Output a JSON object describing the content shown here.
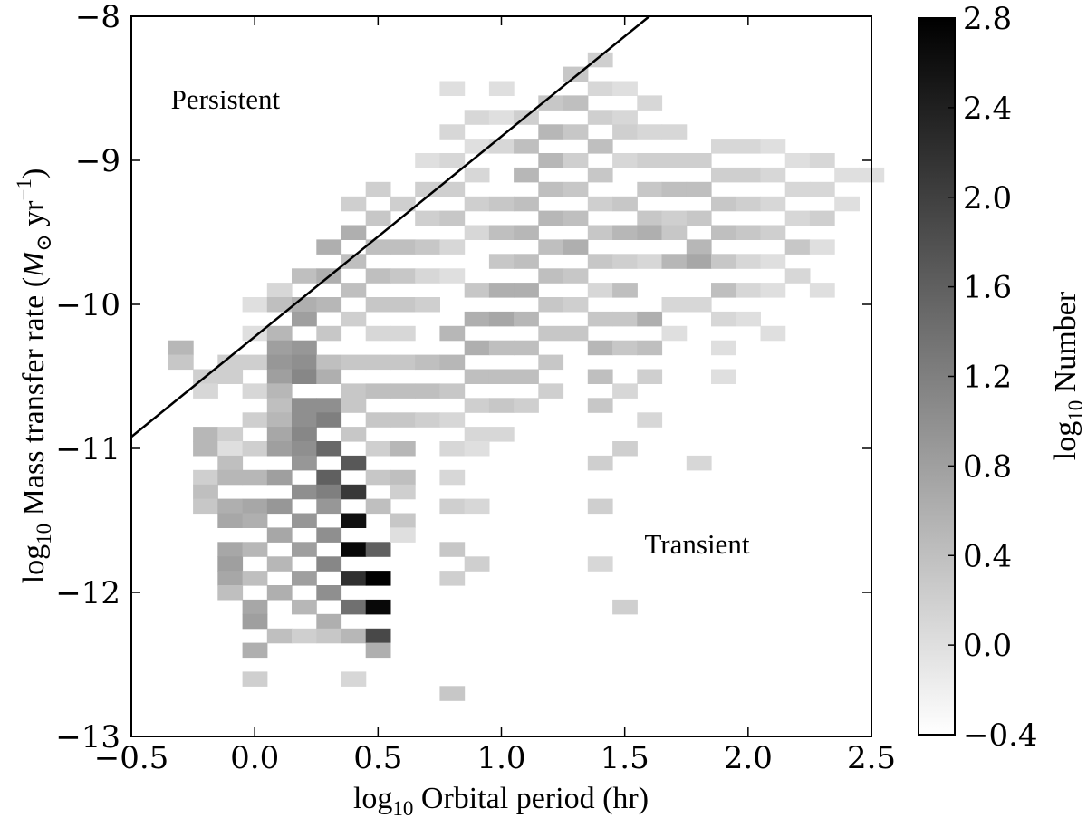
{
  "chart_data": {
    "type": "heatmap",
    "x_axis": {
      "label": "log10 Orbital period (hr)",
      "label_main": "log",
      "label_sub": "10",
      "label_rest": " Orbital period (hr)",
      "lim": [
        -0.5,
        2.5
      ],
      "ticks": [
        -0.5,
        0.0,
        0.5,
        1.0,
        1.5,
        2.0,
        2.5
      ],
      "tick_labels": [
        "−0.5",
        "0.0",
        "0.5",
        "1.0",
        "1.5",
        "2.0",
        "2.5"
      ]
    },
    "y_axis": {
      "label": "log10 Mass transfer rate (M⊙ yr−1)",
      "label_main": "log",
      "label_sub": "10",
      "label_rest": " Mass transfer rate (",
      "label_m": "M",
      "label_msub": "⊙",
      "label_yr": " yr",
      "label_sup": "−1",
      "label_close": ")",
      "lim": [
        -13,
        -8
      ],
      "ticks": [
        -13,
        -12,
        -11,
        -10,
        -9,
        -8
      ],
      "tick_labels": [
        "−13",
        "−12",
        "−11",
        "−10",
        "−9",
        "−8"
      ]
    },
    "colorbar": {
      "label": "log10 Number",
      "label_main": "log",
      "label_sub": "10",
      "label_rest": " Number",
      "lim": [
        -0.4,
        2.8
      ],
      "ticks": [
        -0.4,
        0.0,
        0.4,
        0.8,
        1.2,
        1.6,
        2.0,
        2.4,
        2.8
      ],
      "tick_labels": [
        "−0.4",
        "0.0",
        "0.4",
        "0.8",
        "1.2",
        "1.6",
        "2.0",
        "2.4",
        "2.8"
      ],
      "colormap": "gray_r"
    },
    "annotations": [
      {
        "text": "Persistent",
        "x": -0.34,
        "y": -8.64
      },
      {
        "text": "Transient",
        "x": 1.58,
        "y": -11.73
      }
    ],
    "boundary_line": {
      "x": [
        -0.5,
        1.6
      ],
      "y": [
        -10.92,
        -8.0
      ]
    },
    "bin_width_x": 0.1,
    "bin_width_y": 0.1,
    "cells": [
      [
        -0.3,
        -10.3,
        0.5
      ],
      [
        -0.3,
        -10.4,
        0.3
      ],
      [
        -0.2,
        -10.5,
        0.2
      ],
      [
        -0.2,
        -10.6,
        0.1
      ],
      [
        -0.2,
        -10.9,
        0.5
      ],
      [
        -0.2,
        -11.0,
        0.5
      ],
      [
        -0.2,
        -11.2,
        0.2
      ],
      [
        -0.2,
        -11.3,
        0.4
      ],
      [
        -0.2,
        -11.4,
        0.3
      ],
      [
        -0.1,
        -10.4,
        0.2
      ],
      [
        -0.1,
        -10.5,
        0.2
      ],
      [
        -0.1,
        -10.9,
        0.2
      ],
      [
        -0.1,
        -11.0,
        0.0
      ],
      [
        -0.1,
        -11.1,
        0.4
      ],
      [
        -0.1,
        -11.2,
        0.5
      ],
      [
        -0.1,
        -11.4,
        0.6
      ],
      [
        -0.1,
        -11.5,
        0.7
      ],
      [
        -0.1,
        -11.7,
        0.7
      ],
      [
        -0.1,
        -11.8,
        0.8
      ],
      [
        -0.1,
        -11.9,
        0.7
      ],
      [
        -0.1,
        -12.0,
        0.4
      ],
      [
        0.0,
        -10.0,
        0.0
      ],
      [
        0.0,
        -10.2,
        0.0
      ],
      [
        0.0,
        -10.4,
        0.2
      ],
      [
        0.0,
        -10.6,
        0.1
      ],
      [
        0.0,
        -10.8,
        0.2
      ],
      [
        0.0,
        -11.0,
        0.2
      ],
      [
        0.0,
        -11.2,
        0.5
      ],
      [
        0.0,
        -11.4,
        0.7
      ],
      [
        0.0,
        -11.5,
        0.6
      ],
      [
        0.0,
        -11.7,
        0.5
      ],
      [
        0.0,
        -11.9,
        0.4
      ],
      [
        0.0,
        -12.1,
        0.7
      ],
      [
        0.0,
        -12.2,
        0.8
      ],
      [
        0.0,
        -12.4,
        0.6
      ],
      [
        0.0,
        -12.6,
        0.2
      ],
      [
        0.1,
        -9.9,
        0.1
      ],
      [
        0.1,
        -10.0,
        0.4
      ],
      [
        0.1,
        -10.2,
        0.5
      ],
      [
        0.1,
        -10.3,
        0.8
      ],
      [
        0.1,
        -10.4,
        0.9
      ],
      [
        0.1,
        -10.5,
        0.8
      ],
      [
        0.1,
        -10.6,
        0.5
      ],
      [
        0.1,
        -10.7,
        0.4
      ],
      [
        0.1,
        -10.8,
        0.5
      ],
      [
        0.1,
        -10.9,
        0.7
      ],
      [
        0.1,
        -11.0,
        0.8
      ],
      [
        0.1,
        -11.2,
        0.8
      ],
      [
        0.1,
        -11.4,
        0.9
      ],
      [
        0.1,
        -11.6,
        0.7
      ],
      [
        0.1,
        -11.8,
        0.5
      ],
      [
        0.1,
        -12.0,
        0.6
      ],
      [
        0.1,
        -12.3,
        0.4
      ],
      [
        0.2,
        -9.8,
        0.4
      ],
      [
        0.2,
        -10.0,
        0.6
      ],
      [
        0.2,
        -10.1,
        0.8
      ],
      [
        0.2,
        -10.3,
        0.9
      ],
      [
        0.2,
        -10.4,
        1.0
      ],
      [
        0.2,
        -10.5,
        1.1
      ],
      [
        0.2,
        -10.7,
        1.0
      ],
      [
        0.2,
        -10.8,
        1.0
      ],
      [
        0.2,
        -10.9,
        1.1
      ],
      [
        0.2,
        -11.0,
        1.0
      ],
      [
        0.2,
        -11.1,
        0.9
      ],
      [
        0.2,
        -11.3,
        1.0
      ],
      [
        0.2,
        -11.5,
        0.9
      ],
      [
        0.2,
        -11.7,
        0.8
      ],
      [
        0.2,
        -11.9,
        0.8
      ],
      [
        0.2,
        -12.1,
        0.5
      ],
      [
        0.2,
        -12.3,
        0.2
      ],
      [
        0.3,
        -9.6,
        0.6
      ],
      [
        0.3,
        -9.8,
        0.6
      ],
      [
        0.3,
        -10.0,
        0.5
      ],
      [
        0.3,
        -10.2,
        0.3
      ],
      [
        0.3,
        -10.4,
        0.4
      ],
      [
        0.3,
        -10.5,
        0.6
      ],
      [
        0.3,
        -10.7,
        1.0
      ],
      [
        0.3,
        -10.8,
        1.2
      ],
      [
        0.3,
        -11.0,
        1.5
      ],
      [
        0.3,
        -11.2,
        1.6
      ],
      [
        0.3,
        -11.3,
        1.2
      ],
      [
        0.3,
        -11.4,
        0.9
      ],
      [
        0.3,
        -11.6,
        1.0
      ],
      [
        0.3,
        -11.8,
        1.1
      ],
      [
        0.3,
        -12.0,
        1.0
      ],
      [
        0.3,
        -12.2,
        0.6
      ],
      [
        0.3,
        -12.3,
        0.3
      ],
      [
        0.4,
        -9.3,
        0.2
      ],
      [
        0.4,
        -9.5,
        0.6
      ],
      [
        0.4,
        -9.7,
        0.4
      ],
      [
        0.4,
        -9.9,
        0.4
      ],
      [
        0.4,
        -10.1,
        0.2
      ],
      [
        0.4,
        -10.4,
        0.3
      ],
      [
        0.4,
        -10.6,
        0.3
      ],
      [
        0.4,
        -10.7,
        0.3
      ],
      [
        0.4,
        -10.9,
        0.3
      ],
      [
        0.4,
        -11.1,
        1.7
      ],
      [
        0.4,
        -11.3,
        2.1
      ],
      [
        0.4,
        -11.5,
        2.6
      ],
      [
        0.4,
        -11.7,
        2.7
      ],
      [
        0.4,
        -11.9,
        2.2
      ],
      [
        0.4,
        -12.1,
        1.4
      ],
      [
        0.4,
        -12.3,
        0.5
      ],
      [
        0.4,
        -12.6,
        0.1
      ],
      [
        0.5,
        -9.2,
        0.2
      ],
      [
        0.5,
        -9.4,
        0.3
      ],
      [
        0.5,
        -9.6,
        0.4
      ],
      [
        0.5,
        -9.8,
        0.4
      ],
      [
        0.5,
        -10.0,
        0.3
      ],
      [
        0.5,
        -10.2,
        0.1
      ],
      [
        0.5,
        -10.4,
        0.3
      ],
      [
        0.5,
        -10.6,
        0.4
      ],
      [
        0.5,
        -10.8,
        0.3
      ],
      [
        0.5,
        -11.0,
        0.2
      ],
      [
        0.5,
        -11.2,
        0.3
      ],
      [
        0.5,
        -11.4,
        0.4
      ],
      [
        0.5,
        -11.7,
        1.6
      ],
      [
        0.5,
        -11.9,
        2.8
      ],
      [
        0.5,
        -12.1,
        2.7
      ],
      [
        0.5,
        -12.3,
        1.9
      ],
      [
        0.5,
        -12.4,
        0.6
      ],
      [
        0.6,
        -9.3,
        0.2
      ],
      [
        0.6,
        -9.6,
        0.4
      ],
      [
        0.6,
        -9.8,
        0.3
      ],
      [
        0.6,
        -10.0,
        0.3
      ],
      [
        0.6,
        -10.2,
        0.1
      ],
      [
        0.6,
        -10.4,
        0.3
      ],
      [
        0.6,
        -10.6,
        0.4
      ],
      [
        0.6,
        -10.8,
        0.3
      ],
      [
        0.6,
        -11.0,
        0.5
      ],
      [
        0.6,
        -11.2,
        0.4
      ],
      [
        0.6,
        -11.3,
        0.2
      ],
      [
        0.6,
        -11.5,
        0.3
      ],
      [
        0.6,
        -11.6,
        0.0
      ],
      [
        0.7,
        -9.0,
        0.0
      ],
      [
        0.7,
        -9.2,
        0.2
      ],
      [
        0.7,
        -9.4,
        0.2
      ],
      [
        0.7,
        -9.6,
        0.3
      ],
      [
        0.7,
        -9.8,
        0.1
      ],
      [
        0.7,
        -10.0,
        0.2
      ],
      [
        0.7,
        -10.4,
        0.4
      ],
      [
        0.7,
        -10.6,
        0.4
      ],
      [
        0.7,
        -10.8,
        0.2
      ],
      [
        0.8,
        -8.5,
        0.0
      ],
      [
        0.8,
        -8.8,
        0.1
      ],
      [
        0.8,
        -9.0,
        0.1
      ],
      [
        0.8,
        -9.2,
        0.2
      ],
      [
        0.8,
        -9.4,
        0.3
      ],
      [
        0.8,
        -9.6,
        0.1
      ],
      [
        0.8,
        -9.8,
        0.0
      ],
      [
        0.8,
        -10.2,
        0.5
      ],
      [
        0.8,
        -10.4,
        0.5
      ],
      [
        0.8,
        -10.6,
        0.3
      ],
      [
        0.8,
        -10.8,
        0.1
      ],
      [
        0.8,
        -11.0,
        0.1
      ],
      [
        0.8,
        -11.2,
        0.1
      ],
      [
        0.8,
        -11.4,
        0.2
      ],
      [
        0.8,
        -11.7,
        0.3
      ],
      [
        0.8,
        -11.9,
        0.2
      ],
      [
        0.8,
        -12.7,
        0.3
      ],
      [
        0.9,
        -8.7,
        0.1
      ],
      [
        0.9,
        -8.9,
        0.0
      ],
      [
        0.9,
        -9.1,
        0.1
      ],
      [
        0.9,
        -9.3,
        0.2
      ],
      [
        0.9,
        -9.5,
        0.1
      ],
      [
        0.9,
        -9.9,
        0.3
      ],
      [
        0.9,
        -10.1,
        0.6
      ],
      [
        0.9,
        -10.3,
        0.6
      ],
      [
        0.9,
        -10.5,
        0.4
      ],
      [
        0.9,
        -10.7,
        0.2
      ],
      [
        0.9,
        -10.9,
        0.1
      ],
      [
        0.9,
        -11.0,
        0.0
      ],
      [
        0.9,
        -11.4,
        0.1
      ],
      [
        0.9,
        -11.8,
        0.2
      ],
      [
        1.0,
        -8.5,
        0.0
      ],
      [
        1.0,
        -8.7,
        0.0
      ],
      [
        1.0,
        -8.9,
        0.1
      ],
      [
        1.0,
        -9.3,
        0.3
      ],
      [
        1.0,
        -9.5,
        0.4
      ],
      [
        1.0,
        -9.7,
        0.3
      ],
      [
        1.0,
        -9.9,
        0.6
      ],
      [
        1.0,
        -10.1,
        0.7
      ],
      [
        1.0,
        -10.3,
        0.4
      ],
      [
        1.0,
        -10.5,
        0.4
      ],
      [
        1.0,
        -10.7,
        0.3
      ],
      [
        1.0,
        -10.9,
        0.1
      ],
      [
        1.1,
        -8.7,
        0.2
      ],
      [
        1.1,
        -8.9,
        0.4
      ],
      [
        1.1,
        -9.1,
        0.5
      ],
      [
        1.1,
        -9.3,
        0.4
      ],
      [
        1.1,
        -9.5,
        0.5
      ],
      [
        1.1,
        -9.7,
        0.4
      ],
      [
        1.1,
        -9.9,
        0.6
      ],
      [
        1.1,
        -10.1,
        0.5
      ],
      [
        1.1,
        -10.3,
        0.4
      ],
      [
        1.1,
        -10.5,
        0.4
      ],
      [
        1.1,
        -10.7,
        0.2
      ],
      [
        1.2,
        -8.6,
        0.3
      ],
      [
        1.2,
        -8.8,
        0.5
      ],
      [
        1.2,
        -9.0,
        0.5
      ],
      [
        1.2,
        -9.2,
        0.4
      ],
      [
        1.2,
        -9.4,
        0.5
      ],
      [
        1.2,
        -9.6,
        0.4
      ],
      [
        1.2,
        -9.8,
        0.4
      ],
      [
        1.2,
        -10.0,
        0.3
      ],
      [
        1.2,
        -10.2,
        0.3
      ],
      [
        1.2,
        -10.4,
        0.3
      ],
      [
        1.2,
        -10.6,
        0.2
      ],
      [
        1.3,
        -8.4,
        0.3
      ],
      [
        1.3,
        -8.6,
        0.4
      ],
      [
        1.3,
        -8.8,
        0.3
      ],
      [
        1.3,
        -9.0,
        0.2
      ],
      [
        1.3,
        -9.2,
        0.3
      ],
      [
        1.3,
        -9.4,
        0.4
      ],
      [
        1.3,
        -9.6,
        0.6
      ],
      [
        1.3,
        -9.8,
        0.3
      ],
      [
        1.3,
        -10.0,
        0.2
      ],
      [
        1.3,
        -10.2,
        0.3
      ],
      [
        1.4,
        -8.3,
        0.2
      ],
      [
        1.4,
        -8.5,
        0.1
      ],
      [
        1.4,
        -8.7,
        0.2
      ],
      [
        1.4,
        -8.9,
        0.4
      ],
      [
        1.4,
        -9.1,
        0.3
      ],
      [
        1.4,
        -9.3,
        0.2
      ],
      [
        1.4,
        -9.5,
        0.3
      ],
      [
        1.4,
        -9.7,
        0.3
      ],
      [
        1.4,
        -9.9,
        0.1
      ],
      [
        1.4,
        -10.1,
        0.3
      ],
      [
        1.4,
        -10.3,
        0.5
      ],
      [
        1.4,
        -10.5,
        0.4
      ],
      [
        1.4,
        -10.7,
        0.3
      ],
      [
        1.4,
        -11.1,
        0.2
      ],
      [
        1.4,
        -11.4,
        0.2
      ],
      [
        1.4,
        -11.8,
        0.1
      ],
      [
        1.5,
        -8.5,
        0.0
      ],
      [
        1.5,
        -8.7,
        0.1
      ],
      [
        1.5,
        -8.8,
        0.2
      ],
      [
        1.5,
        -9.0,
        0.1
      ],
      [
        1.5,
        -9.3,
        0.3
      ],
      [
        1.5,
        -9.5,
        0.5
      ],
      [
        1.5,
        -9.7,
        0.2
      ],
      [
        1.5,
        -9.9,
        0.4
      ],
      [
        1.5,
        -10.1,
        0.3
      ],
      [
        1.5,
        -10.3,
        0.3
      ],
      [
        1.5,
        -10.6,
        0.1
      ],
      [
        1.5,
        -11.0,
        0.2
      ],
      [
        1.5,
        -12.1,
        0.2
      ],
      [
        1.6,
        -8.6,
        0.1
      ],
      [
        1.6,
        -8.8,
        0.1
      ],
      [
        1.6,
        -9.0,
        0.2
      ],
      [
        1.6,
        -9.2,
        0.3
      ],
      [
        1.6,
        -9.4,
        0.3
      ],
      [
        1.6,
        -9.5,
        0.6
      ],
      [
        1.6,
        -9.7,
        0.1
      ],
      [
        1.6,
        -10.1,
        0.6
      ],
      [
        1.6,
        -10.3,
        0.4
      ],
      [
        1.6,
        -10.5,
        0.2
      ],
      [
        1.6,
        -10.8,
        0.1
      ],
      [
        1.7,
        -8.8,
        0.1
      ],
      [
        1.7,
        -9.0,
        0.2
      ],
      [
        1.7,
        -9.2,
        0.4
      ],
      [
        1.7,
        -9.4,
        0.2
      ],
      [
        1.7,
        -9.5,
        0.3
      ],
      [
        1.7,
        -9.7,
        0.5
      ],
      [
        1.7,
        -10.0,
        0.1
      ],
      [
        1.7,
        -10.2,
        0.0
      ],
      [
        1.8,
        -9.0,
        0.2
      ],
      [
        1.8,
        -9.2,
        0.4
      ],
      [
        1.8,
        -9.4,
        0.3
      ],
      [
        1.8,
        -9.6,
        0.5
      ],
      [
        1.8,
        -9.7,
        0.7
      ],
      [
        1.8,
        -10.0,
        0.1
      ],
      [
        1.8,
        -11.1,
        0.1
      ],
      [
        1.9,
        -8.9,
        0.1
      ],
      [
        1.9,
        -9.1,
        0.2
      ],
      [
        1.9,
        -9.3,
        0.3
      ],
      [
        1.9,
        -9.5,
        0.4
      ],
      [
        1.9,
        -9.7,
        0.3
      ],
      [
        1.9,
        -9.9,
        0.4
      ],
      [
        1.9,
        -10.1,
        0.1
      ],
      [
        1.9,
        -10.3,
        0.0
      ],
      [
        1.9,
        -10.5,
        0.0
      ],
      [
        2.0,
        -8.9,
        0.1
      ],
      [
        2.0,
        -9.1,
        0.2
      ],
      [
        2.0,
        -9.3,
        0.2
      ],
      [
        2.0,
        -9.5,
        0.3
      ],
      [
        2.0,
        -9.7,
        0.1
      ],
      [
        2.0,
        -9.9,
        0.1
      ],
      [
        2.0,
        -10.1,
        0.0
      ],
      [
        2.1,
        -8.9,
        0.0
      ],
      [
        2.1,
        -9.1,
        0.1
      ],
      [
        2.1,
        -9.3,
        0.1
      ],
      [
        2.1,
        -9.5,
        0.2
      ],
      [
        2.1,
        -9.7,
        0.0
      ],
      [
        2.1,
        -9.9,
        0.0
      ],
      [
        2.1,
        -10.2,
        0.0
      ],
      [
        2.2,
        -9.0,
        0.0
      ],
      [
        2.2,
        -9.2,
        0.1
      ],
      [
        2.2,
        -9.4,
        0.1
      ],
      [
        2.2,
        -9.6,
        0.3
      ],
      [
        2.2,
        -9.8,
        0.1
      ],
      [
        2.3,
        -9.0,
        0.1
      ],
      [
        2.3,
        -9.2,
        0.1
      ],
      [
        2.3,
        -9.4,
        0.2
      ],
      [
        2.3,
        -9.6,
        0.0
      ],
      [
        2.3,
        -9.9,
        0.0
      ],
      [
        2.4,
        -9.1,
        0.0
      ],
      [
        2.4,
        -9.3,
        0.0
      ],
      [
        2.5,
        -9.1,
        0.0
      ]
    ]
  }
}
